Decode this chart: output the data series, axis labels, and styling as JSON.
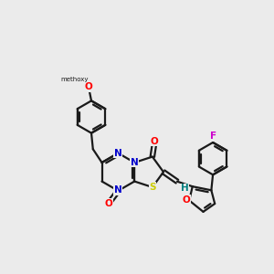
{
  "background_color": "#ebebeb",
  "bond_color": "#1a1a1a",
  "atom_colors": {
    "O": "#ff0000",
    "N": "#0000cc",
    "S": "#cccc00",
    "F": "#cc00cc",
    "H": "#008080",
    "C": "#1a1a1a"
  },
  "figsize": [
    3.0,
    3.0
  ],
  "dpi": 100,
  "scale": 1.0
}
